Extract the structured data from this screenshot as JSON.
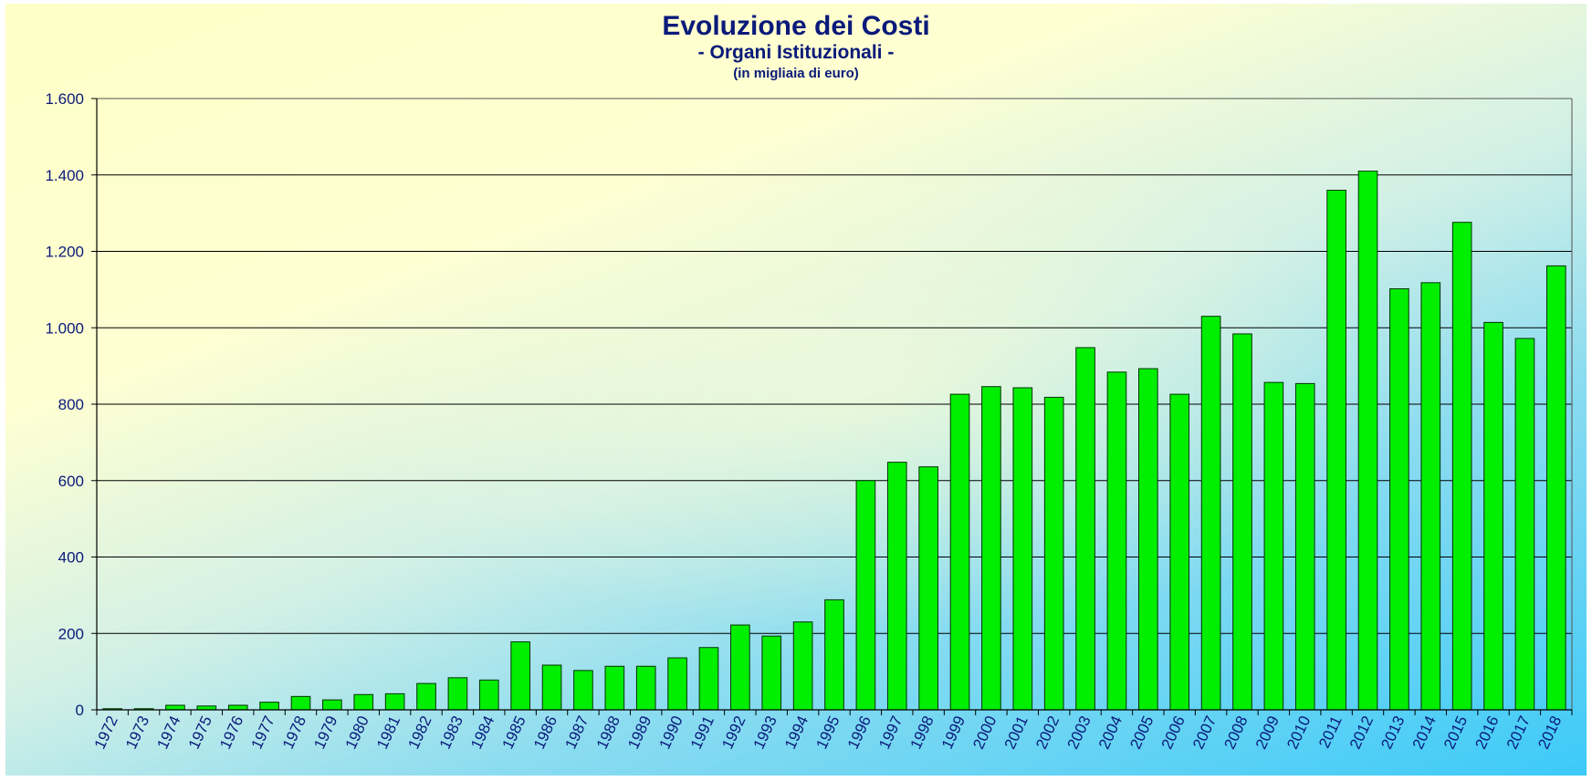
{
  "chart_data": {
    "type": "bar",
    "title": "Evoluzione dei Costi",
    "subtitle": "- Organi Istituzionali -",
    "unit_note": "(in migliaia di euro)",
    "xlabel": "",
    "ylabel": "",
    "ylim": [
      0,
      1600
    ],
    "yticks": [
      0,
      200,
      400,
      600,
      800,
      1000,
      1200,
      1400,
      1600
    ],
    "ytick_labels": [
      "0",
      "200",
      "400",
      "600",
      "800",
      "1.000",
      "1.200",
      "1.400",
      "1.600"
    ],
    "grid": true,
    "legend": "none",
    "categories": [
      "1972",
      "1973",
      "1974",
      "1975",
      "1976",
      "1977",
      "1978",
      "1979",
      "1980",
      "1981",
      "1982",
      "1983",
      "1984",
      "1985",
      "1986",
      "1987",
      "1988",
      "1989",
      "1990",
      "1991",
      "1992",
      "1993",
      "1994",
      "1995",
      "1996",
      "1997",
      "1998",
      "1999",
      "2000",
      "2001",
      "2002",
      "2003",
      "2004",
      "2005",
      "2006",
      "2007",
      "2008",
      "2009",
      "2010",
      "2011",
      "2012",
      "2013",
      "2014",
      "2015",
      "2016",
      "2017",
      "2018"
    ],
    "values": [
      3,
      3,
      12,
      10,
      12,
      20,
      35,
      26,
      40,
      42,
      69,
      84,
      78,
      178,
      117,
      103,
      114,
      114,
      136,
      163,
      222,
      193,
      230,
      288,
      600,
      648,
      636,
      826,
      846,
      843,
      818,
      948,
      884,
      893,
      826,
      1030,
      984,
      857,
      854,
      1360,
      1410,
      1102,
      1118,
      1276,
      1014,
      972,
      1162
    ],
    "colors": {
      "bar_fill": "#00ee00",
      "bar_stroke": "#003300",
      "grid": "#000000",
      "text": "#0a1a7a"
    }
  }
}
